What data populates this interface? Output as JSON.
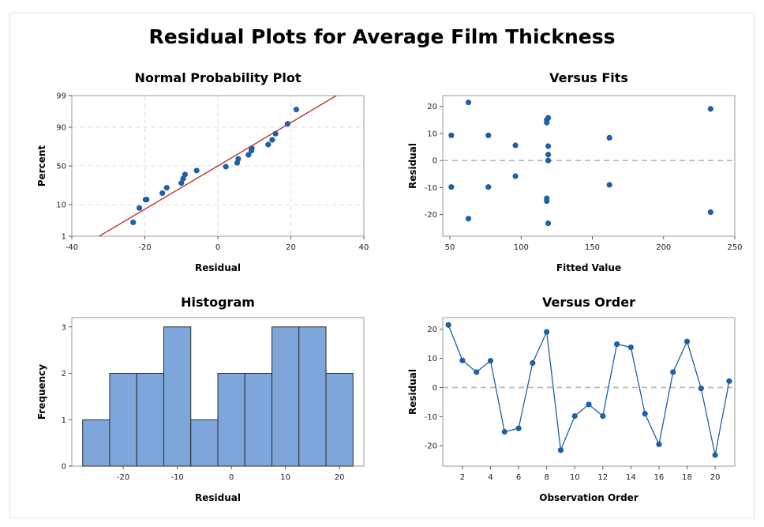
{
  "title": "Residual Plots for Average Film Thickness",
  "colors": {
    "point": "#1f5fa6",
    "fit_line": "#b5372f",
    "bar_fill": "#7ea6da",
    "bar_edge": "#2b2b2b",
    "grid": "#dcdcdc",
    "ref_line": "#b5b5b5"
  },
  "chart_data": [
    {
      "id": "normal",
      "type": "scatter",
      "title": "Normal Probability Plot",
      "xlabel": "Residual",
      "ylabel": "Percent",
      "xlim": [
        -40,
        40
      ],
      "xticks": [
        -40,
        -20,
        0,
        20,
        40
      ],
      "yticks": [
        1,
        10,
        50,
        90,
        99
      ],
      "y_scale": "normal-probability",
      "grid": true,
      "fit_line": {
        "x": [
          -32.5,
          32.5
        ],
        "y": [
          1,
          99
        ]
      },
      "points": {
        "x": [
          -23.2,
          -21.5,
          -19.5,
          -15.2,
          -14.0,
          -10.0,
          -9.5,
          -9.0,
          -5.8,
          2.2,
          5.3,
          5.6,
          8.4,
          9.2,
          9.3,
          13.8,
          14.9,
          15.8,
          19.1,
          21.5,
          -19.8
        ],
        "y": [
          3.1,
          8.2,
          13.3,
          18.4,
          23.5,
          28.6,
          33.7,
          38.8,
          43.9,
          49.0,
          54.1,
          59.2,
          64.3,
          69.4,
          72.0,
          76.0,
          80.6,
          85.7,
          91.8,
          96.9,
          13.3
        ]
      }
    },
    {
      "id": "fits",
      "type": "scatter",
      "title": "Versus Fits",
      "xlabel": "Fitted Value",
      "ylabel": "Residual",
      "xlim": [
        45,
        250
      ],
      "ylim": [
        -28,
        24
      ],
      "xticks": [
        50,
        100,
        150,
        200,
        250
      ],
      "yticks": [
        -20,
        -10,
        0,
        10,
        20
      ],
      "reference_line": 0,
      "points": {
        "x": [
          51,
          51,
          63,
          63,
          77,
          77,
          96,
          96,
          118,
          118,
          118,
          118,
          119,
          119,
          119,
          119,
          119,
          162,
          162,
          233,
          233
        ],
        "y": [
          9.3,
          -9.8,
          21.5,
          -21.5,
          9.3,
          -9.8,
          5.6,
          -5.8,
          14.0,
          15.0,
          -14.0,
          -15.0,
          15.8,
          5.3,
          2.2,
          0.0,
          -23.2,
          8.4,
          -9.0,
          19.1,
          -19.1
        ]
      }
    },
    {
      "id": "hist",
      "type": "bar",
      "title": "Histogram",
      "xlabel": "Residual",
      "ylabel": "Frequency",
      "xlim": [
        -29.5,
        24.5
      ],
      "ylim": [
        0,
        3.2
      ],
      "xticks": [
        -20,
        -10,
        0,
        10,
        20
      ],
      "yticks": [
        0,
        1,
        2,
        3
      ],
      "bin_width": 5,
      "bin_starts": [
        -27.5,
        -22.5,
        -17.5,
        -12.5,
        -7.5,
        -2.5,
        2.5,
        7.5,
        12.5,
        17.5
      ],
      "values": [
        1,
        2,
        2,
        3,
        1,
        2,
        2,
        3,
        3,
        2
      ]
    },
    {
      "id": "order",
      "type": "line",
      "title": "Versus Order",
      "xlabel": "Observation Order",
      "ylabel": "Residual",
      "xlim": [
        0.6,
        21.4
      ],
      "ylim": [
        -27,
        24
      ],
      "xticks": [
        2,
        4,
        6,
        8,
        10,
        12,
        14,
        16,
        18,
        20
      ],
      "yticks": [
        -20,
        -10,
        0,
        10,
        20
      ],
      "reference_line": 0,
      "x": [
        1,
        2,
        3,
        4,
        5,
        6,
        7,
        8,
        9,
        10,
        11,
        12,
        13,
        14,
        15,
        16,
        17,
        18,
        19,
        20,
        21
      ],
      "y": [
        21.5,
        9.3,
        5.3,
        9.2,
        -15.2,
        -14.0,
        8.4,
        19.1,
        -21.5,
        -9.8,
        -5.8,
        -9.8,
        14.9,
        13.8,
        -9.0,
        -19.5,
        5.3,
        15.8,
        -0.3,
        -23.2,
        2.2
      ]
    }
  ]
}
